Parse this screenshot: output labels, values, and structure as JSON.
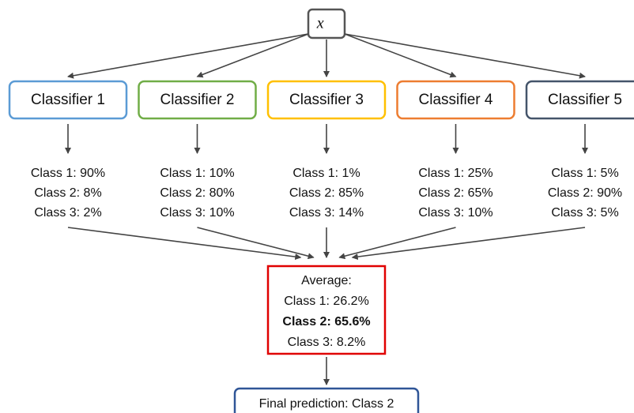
{
  "input": {
    "label": "x⃗"
  },
  "classifiers": [
    {
      "name": "Classifier 1",
      "color": "#5b9bd5",
      "outputs": [
        "Class 1: 90%",
        "Class 2: 8%",
        "Class 3: 2%"
      ]
    },
    {
      "name": "Classifier 2",
      "color": "#70ad47",
      "outputs": [
        "Class 1: 10%",
        "Class 2: 80%",
        "Class 3: 10%"
      ]
    },
    {
      "name": "Classifier 3",
      "color": "#ffc000",
      "outputs": [
        "Class 1: 1%",
        "Class 2: 85%",
        "Class 3: 14%"
      ]
    },
    {
      "name": "Classifier 4",
      "color": "#ed7d31",
      "outputs": [
        "Class 1: 25%",
        "Class 2: 65%",
        "Class 3: 10%"
      ]
    },
    {
      "name": "Classifier 5",
      "color": "#44546a",
      "outputs": [
        "Class 1: 5%",
        "Class 2: 90%",
        "Class 3: 5%"
      ]
    }
  ],
  "average": {
    "title": "Average:",
    "color": "#e00000",
    "lines": [
      "Class 1: 26.2%",
      "Class 2: 65.6%",
      "Class 3: 8.2%"
    ],
    "bold_line": 1
  },
  "final": {
    "label": "Final prediction: Class 2",
    "color": "#2f5597"
  }
}
